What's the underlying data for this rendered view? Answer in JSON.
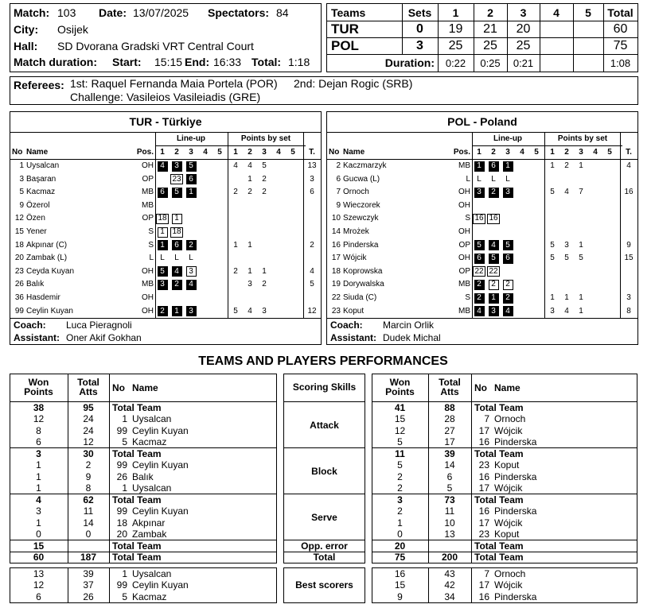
{
  "match": {
    "match_label": "Match:",
    "match": "103",
    "date_label": "Date:",
    "date": "13/07/2025",
    "spectators_label": "Spectators:",
    "spectators": "84",
    "city_label": "City:",
    "city": "Osijek",
    "hall_label": "Hall:",
    "hall": "SD Dvorana Gradski VRT Central Court",
    "duration_label": "Match duration:",
    "start_label": "Start:",
    "start": "15:15",
    "end_label": "End:",
    "end": "16:33",
    "total_label": "Total:",
    "total": "1:18"
  },
  "score": {
    "headers": [
      "Teams",
      "Sets",
      "1",
      "2",
      "3",
      "4",
      "5",
      "Total"
    ],
    "rows": [
      {
        "team": "TUR",
        "sets": 0,
        "points": [
          19,
          21,
          20,
          null,
          null
        ],
        "total": 60
      },
      {
        "team": "POL",
        "sets": 3,
        "points": [
          25,
          25,
          25,
          null,
          null
        ],
        "total": 75
      }
    ],
    "duration_label": "Duration:",
    "durations": [
      "0:22",
      "0:25",
      "0:21",
      null,
      null
    ],
    "duration_total": "1:08"
  },
  "referees": {
    "label": "Referees:",
    "first": "1st: Raquel Fernanda Maia Portela (POR)",
    "second": "2nd: Dejan Rogic (SRB)",
    "challenge": "Challenge: Vasileios Vasileiadis (GRE)"
  },
  "roster_headers": {
    "lineup": "Line-up",
    "points_by_set": "Points by set",
    "no": "No",
    "name": "Name",
    "pos": "Pos.",
    "sets": [
      "1",
      "2",
      "3",
      "4",
      "5"
    ],
    "t": "T."
  },
  "teams": [
    {
      "title": "TUR - Türkiye",
      "coach_label": "Coach:",
      "coach": "Luca Pieragnoli",
      "assistant_label": "Assistant:",
      "assistant": "Oner Akif Gokhan",
      "players": [
        {
          "no": 1,
          "name": "Uysalcan",
          "pos": "OH",
          "lineup": [
            {
              "text": "4",
              "kind": "start"
            },
            {
              "text": "3",
              "kind": "start"
            },
            {
              "text": "5",
              "kind": "start"
            },
            null,
            null
          ],
          "points": [
            4,
            4,
            5,
            null,
            null
          ],
          "t": 13
        },
        {
          "no": 3,
          "name": "Başaran",
          "pos": "OP",
          "lineup": [
            null,
            {
              "text": "23",
              "kind": "sub"
            },
            {
              "text": "6",
              "kind": "start"
            },
            null,
            null
          ],
          "points": [
            null,
            1,
            2,
            null,
            null
          ],
          "t": 3
        },
        {
          "no": 5,
          "name": "Kacmaz",
          "pos": "MB",
          "lineup": [
            {
              "text": "6",
              "kind": "start"
            },
            {
              "text": "5",
              "kind": "start"
            },
            {
              "text": "1",
              "kind": "start"
            },
            null,
            null
          ],
          "points": [
            2,
            2,
            2,
            null,
            null
          ],
          "t": 6
        },
        {
          "no": 9,
          "name": "Özerol",
          "pos": "MB",
          "lineup": [
            null,
            null,
            null,
            null,
            null
          ],
          "points": [
            null,
            null,
            null,
            null,
            null
          ],
          "t": null
        },
        {
          "no": 12,
          "name": "Özen",
          "pos": "OP",
          "lineup": [
            {
              "text": "18",
              "kind": "sub"
            },
            {
              "text": "1",
              "kind": "sub"
            },
            null,
            null,
            null
          ],
          "points": [
            null,
            null,
            null,
            null,
            null
          ],
          "t": null
        },
        {
          "no": 15,
          "name": "Yener",
          "pos": "S",
          "lineup": [
            {
              "text": "1",
              "kind": "sub"
            },
            {
              "text": "18",
              "kind": "sub"
            },
            null,
            null,
            null
          ],
          "points": [
            null,
            null,
            null,
            null,
            null
          ],
          "t": null
        },
        {
          "no": 18,
          "name": "Akpınar (C)",
          "pos": "S",
          "lineup": [
            {
              "text": "1",
              "kind": "start"
            },
            {
              "text": "6",
              "kind": "start"
            },
            {
              "text": "2",
              "kind": "start"
            },
            null,
            null
          ],
          "points": [
            1,
            1,
            null,
            null,
            null
          ],
          "t": 2
        },
        {
          "no": 20,
          "name": "Zambak (L)",
          "pos": "L",
          "lineup": [
            {
              "text": "L",
              "kind": "libero"
            },
            {
              "text": "L",
              "kind": "libero"
            },
            {
              "text": "L",
              "kind": "libero"
            },
            null,
            null
          ],
          "points": [
            null,
            null,
            null,
            null,
            null
          ],
          "t": null
        },
        {
          "no": 23,
          "name": "Ceyda Kuyan",
          "pos": "OH",
          "lineup": [
            {
              "text": "5",
              "kind": "start"
            },
            {
              "text": "4",
              "kind": "start"
            },
            {
              "text": "3",
              "kind": "sub"
            },
            null,
            null
          ],
          "points": [
            2,
            1,
            1,
            null,
            null
          ],
          "t": 4
        },
        {
          "no": 26,
          "name": "Balık",
          "pos": "MB",
          "lineup": [
            {
              "text": "3",
              "kind": "start"
            },
            {
              "text": "2",
              "kind": "start"
            },
            {
              "text": "4",
              "kind": "start"
            },
            null,
            null
          ],
          "points": [
            null,
            3,
            2,
            null,
            null
          ],
          "t": 5
        },
        {
          "no": 36,
          "name": "Hasdemir",
          "pos": "OH",
          "lineup": [
            null,
            null,
            null,
            null,
            null
          ],
          "points": [
            null,
            null,
            null,
            null,
            null
          ],
          "t": null
        },
        {
          "no": 99,
          "name": "Ceylin Kuyan",
          "pos": "OH",
          "lineup": [
            {
              "text": "2",
              "kind": "start"
            },
            {
              "text": "1",
              "kind": "start"
            },
            {
              "text": "3",
              "kind": "start"
            },
            null,
            null
          ],
          "points": [
            5,
            4,
            3,
            null,
            null
          ],
          "t": 12
        }
      ]
    },
    {
      "title": "POL - Poland",
      "coach_label": "Coach:",
      "coach": "Marcin Orlik",
      "assistant_label": "Assistant:",
      "assistant": "Dudek Michal",
      "players": [
        {
          "no": 2,
          "name": "Kaczmarzyk",
          "pos": "MB",
          "lineup": [
            {
              "text": "1",
              "kind": "start"
            },
            {
              "text": "6",
              "kind": "start"
            },
            {
              "text": "1",
              "kind": "start"
            },
            null,
            null
          ],
          "points": [
            1,
            2,
            1,
            null,
            null
          ],
          "t": 4
        },
        {
          "no": 6,
          "name": "Gucwa (L)",
          "pos": "L",
          "lineup": [
            {
              "text": "L",
              "kind": "libero"
            },
            {
              "text": "L",
              "kind": "libero"
            },
            {
              "text": "L",
              "kind": "libero"
            },
            null,
            null
          ],
          "points": [
            null,
            null,
            null,
            null,
            null
          ],
          "t": null
        },
        {
          "no": 7,
          "name": "Ornoch",
          "pos": "OH",
          "lineup": [
            {
              "text": "3",
              "kind": "start"
            },
            {
              "text": "2",
              "kind": "start"
            },
            {
              "text": "3",
              "kind": "start"
            },
            null,
            null
          ],
          "points": [
            5,
            4,
            7,
            null,
            null
          ],
          "t": 16
        },
        {
          "no": 9,
          "name": "Wieczorek",
          "pos": "OH",
          "lineup": [
            null,
            null,
            null,
            null,
            null
          ],
          "points": [
            null,
            null,
            null,
            null,
            null
          ],
          "t": null
        },
        {
          "no": 10,
          "name": "Szewczyk",
          "pos": "S",
          "lineup": [
            {
              "text": "16",
              "kind": "sub"
            },
            {
              "text": "16",
              "kind": "sub"
            },
            null,
            null,
            null
          ],
          "points": [
            null,
            null,
            null,
            null,
            null
          ],
          "t": null
        },
        {
          "no": 14,
          "name": "Mrożek",
          "pos": "OH",
          "lineup": [
            null,
            null,
            null,
            null,
            null
          ],
          "points": [
            null,
            null,
            null,
            null,
            null
          ],
          "t": null
        },
        {
          "no": 16,
          "name": "Pinderska",
          "pos": "OP",
          "lineup": [
            {
              "text": "5",
              "kind": "start"
            },
            {
              "text": "4",
              "kind": "start"
            },
            {
              "text": "5",
              "kind": "start"
            },
            null,
            null
          ],
          "points": [
            5,
            3,
            1,
            null,
            null
          ],
          "t": 9
        },
        {
          "no": 17,
          "name": "Wójcik",
          "pos": "OH",
          "lineup": [
            {
              "text": "6",
              "kind": "start"
            },
            {
              "text": "5",
              "kind": "start"
            },
            {
              "text": "6",
              "kind": "start"
            },
            null,
            null
          ],
          "points": [
            5,
            5,
            5,
            null,
            null
          ],
          "t": 15
        },
        {
          "no": 18,
          "name": "Koprowska",
          "pos": "OP",
          "lineup": [
            {
              "text": "22",
              "kind": "sub"
            },
            {
              "text": "22",
              "kind": "sub"
            },
            null,
            null,
            null
          ],
          "points": [
            null,
            null,
            null,
            null,
            null
          ],
          "t": null
        },
        {
          "no": 19,
          "name": "Dorywalska",
          "pos": "MB",
          "lineup": [
            {
              "text": "2",
              "kind": "start"
            },
            {
              "text": "2",
              "kind": "sub"
            },
            {
              "text": "2",
              "kind": "sub"
            },
            null,
            null
          ],
          "points": [
            null,
            null,
            null,
            null,
            null
          ],
          "t": null
        },
        {
          "no": 22,
          "name": "Siuda (C)",
          "pos": "S",
          "lineup": [
            {
              "text": "2",
              "kind": "start"
            },
            {
              "text": "1",
              "kind": "start"
            },
            {
              "text": "2",
              "kind": "start"
            },
            null,
            null
          ],
          "points": [
            1,
            1,
            1,
            null,
            null
          ],
          "t": 3
        },
        {
          "no": 23,
          "name": "Koput",
          "pos": "MB",
          "lineup": [
            {
              "text": "4",
              "kind": "start"
            },
            {
              "text": "3",
              "kind": "start"
            },
            {
              "text": "4",
              "kind": "start"
            },
            null,
            null
          ],
          "points": [
            3,
            4,
            1,
            null,
            null
          ],
          "t": 8
        }
      ]
    }
  ],
  "performance": {
    "title": "TEAMS AND PLAYERS PERFORMANCES",
    "headers": {
      "won": "Won Points",
      "atts": "Total Atts",
      "no": "No",
      "name": "Name",
      "skills": "Scoring Skills"
    },
    "skills": [
      {
        "name": "Attack",
        "tur": [
          [
            38,
            95,
            null,
            "Total Team"
          ],
          [
            12,
            24,
            1,
            "Uysalcan"
          ],
          [
            8,
            24,
            99,
            "Ceylin Kuyan"
          ],
          [
            6,
            12,
            5,
            "Kacmaz"
          ]
        ],
        "pol": [
          [
            41,
            88,
            null,
            "Total Team"
          ],
          [
            15,
            28,
            7,
            "Ornoch"
          ],
          [
            12,
            27,
            17,
            "Wójcik"
          ],
          [
            5,
            17,
            16,
            "Pinderska"
          ]
        ]
      },
      {
        "name": "Block",
        "tur": [
          [
            3,
            30,
            null,
            "Total Team"
          ],
          [
            1,
            2,
            99,
            "Ceylin Kuyan"
          ],
          [
            1,
            9,
            26,
            "Balık"
          ],
          [
            1,
            8,
            1,
            "Uysalcan"
          ]
        ],
        "pol": [
          [
            11,
            39,
            null,
            "Total Team"
          ],
          [
            5,
            14,
            23,
            "Koput"
          ],
          [
            2,
            6,
            16,
            "Pinderska"
          ],
          [
            2,
            5,
            17,
            "Wójcik"
          ]
        ]
      },
      {
        "name": "Serve",
        "tur": [
          [
            4,
            62,
            null,
            "Total Team"
          ],
          [
            3,
            11,
            99,
            "Ceylin Kuyan"
          ],
          [
            1,
            14,
            18,
            "Akpınar"
          ],
          [
            0,
            0,
            20,
            "Zambak"
          ]
        ],
        "pol": [
          [
            3,
            73,
            null,
            "Total Team"
          ],
          [
            2,
            11,
            16,
            "Pinderska"
          ],
          [
            1,
            10,
            17,
            "Wójcik"
          ],
          [
            0,
            13,
            23,
            "Koput"
          ]
        ]
      },
      {
        "name": "Opp. error",
        "tur": [
          [
            15,
            null,
            null,
            "Total Team"
          ]
        ],
        "pol": [
          [
            20,
            null,
            null,
            "Total Team"
          ]
        ]
      },
      {
        "name": "Total",
        "tur": [
          [
            60,
            187,
            null,
            "Total Team"
          ]
        ],
        "pol": [
          [
            75,
            200,
            null,
            "Total Team"
          ]
        ]
      }
    ],
    "best": {
      "name": "Best scorers",
      "tur": [
        [
          13,
          39,
          1,
          "Uysalcan"
        ],
        [
          12,
          37,
          99,
          "Ceylin Kuyan"
        ],
        [
          6,
          26,
          5,
          "Kacmaz"
        ]
      ],
      "pol": [
        [
          16,
          43,
          7,
          "Ornoch"
        ],
        [
          15,
          42,
          17,
          "Wójcik"
        ],
        [
          9,
          34,
          16,
          "Pinderska"
        ]
      ]
    }
  }
}
